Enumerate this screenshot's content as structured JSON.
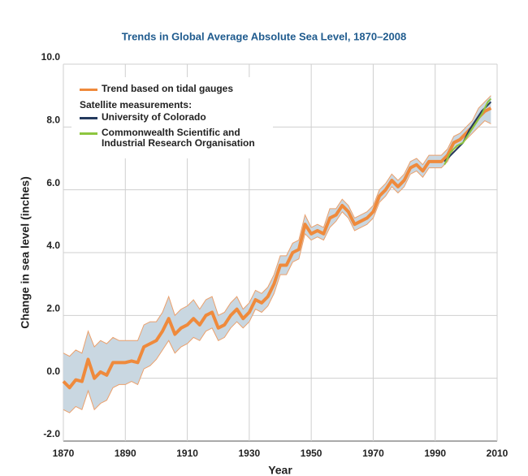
{
  "chart_data": {
    "type": "line",
    "title": "Trends in Global Average Absolute Sea Level, 1870–2008",
    "x_label": "Year",
    "y_label": "Change in sea level (inches)",
    "legend_heading": "Satellite measurements:",
    "xlim": [
      1870,
      2010
    ],
    "xticks": [
      1870,
      1890,
      1910,
      1930,
      1950,
      1970,
      1990,
      2010
    ],
    "ylim": [
      -2,
      10
    ],
    "yticks": [
      {
        "value": -2,
        "label": "-2.0"
      },
      {
        "value": 0,
        "label": "0.0"
      },
      {
        "value": 2,
        "label": "2.0"
      },
      {
        "value": 4,
        "label": "4.0"
      },
      {
        "value": 6,
        "label": "6.0"
      },
      {
        "value": 8,
        "label": "8.0"
      },
      {
        "value": 10,
        "label": "10.0"
      }
    ],
    "grid": true,
    "band_color": "#c9d7e1",
    "band_edge_color": "#eba06c",
    "x": [
      1870,
      1872,
      1874,
      1876,
      1878,
      1880,
      1882,
      1884,
      1886,
      1888,
      1890,
      1892,
      1894,
      1896,
      1898,
      1900,
      1902,
      1904,
      1906,
      1908,
      1910,
      1912,
      1914,
      1916,
      1918,
      1920,
      1922,
      1924,
      1926,
      1928,
      1930,
      1932,
      1934,
      1936,
      1938,
      1940,
      1942,
      1944,
      1946,
      1948,
      1950,
      1952,
      1954,
      1956,
      1958,
      1960,
      1962,
      1964,
      1966,
      1968,
      1970,
      1972,
      1974,
      1976,
      1978,
      1980,
      1982,
      1984,
      1986,
      1988,
      1990,
      1992,
      1994,
      1996,
      1998,
      2000,
      2002,
      2004,
      2006,
      2008
    ],
    "band": {
      "lower": [
        -1.0,
        -1.1,
        -0.9,
        -1.0,
        -0.4,
        -1.0,
        -0.8,
        -0.7,
        -0.3,
        -0.2,
        -0.2,
        -0.1,
        -0.2,
        0.3,
        0.4,
        0.6,
        0.9,
        1.2,
        0.8,
        1.0,
        1.1,
        1.3,
        1.2,
        1.5,
        1.6,
        1.2,
        1.3,
        1.6,
        1.8,
        1.6,
        1.8,
        2.2,
        2.1,
        2.3,
        2.7,
        3.3,
        3.3,
        3.7,
        3.8,
        4.6,
        4.4,
        4.5,
        4.4,
        4.8,
        5.0,
        5.3,
        5.1,
        4.7,
        4.8,
        4.9,
        5.1,
        5.6,
        5.8,
        6.1,
        5.9,
        6.1,
        6.5,
        6.6,
        6.4,
        6.7,
        6.7,
        6.7,
        6.9,
        7.3,
        7.4,
        7.6,
        7.8,
        8.0,
        8.2,
        8.1
      ],
      "upper": [
        0.8,
        0.7,
        0.9,
        0.8,
        1.5,
        1.0,
        1.2,
        1.1,
        1.3,
        1.2,
        1.2,
        1.2,
        1.2,
        1.7,
        1.8,
        1.8,
        2.1,
        2.6,
        2.0,
        2.2,
        2.3,
        2.5,
        2.2,
        2.5,
        2.6,
        2.0,
        2.1,
        2.4,
        2.6,
        2.2,
        2.4,
        2.8,
        2.7,
        2.9,
        3.3,
        3.9,
        3.9,
        4.3,
        4.4,
        5.2,
        4.8,
        4.9,
        4.8,
        5.4,
        5.4,
        5.7,
        5.5,
        5.1,
        5.2,
        5.3,
        5.5,
        6.0,
        6.2,
        6.5,
        6.3,
        6.5,
        6.9,
        7.0,
        6.8,
        7.1,
        7.1,
        7.1,
        7.3,
        7.7,
        7.8,
        8.0,
        8.2,
        8.6,
        8.8,
        9.0
      ]
    },
    "series": [
      {
        "name": "Trend based on tidal gauges",
        "color": "#ef8a3c",
        "values": [
          -0.1,
          -0.3,
          -0.05,
          -0.1,
          0.6,
          0.0,
          0.2,
          0.1,
          0.5,
          0.5,
          0.5,
          0.55,
          0.5,
          1.0,
          1.1,
          1.2,
          1.5,
          1.9,
          1.4,
          1.6,
          1.7,
          1.9,
          1.7,
          2.0,
          2.1,
          1.6,
          1.7,
          2.0,
          2.2,
          1.9,
          2.1,
          2.5,
          2.4,
          2.6,
          3.0,
          3.6,
          3.6,
          4.0,
          4.1,
          4.9,
          4.6,
          4.7,
          4.6,
          5.1,
          5.2,
          5.5,
          5.3,
          4.9,
          5.0,
          5.1,
          5.3,
          5.8,
          6.0,
          6.3,
          6.1,
          6.3,
          6.7,
          6.8,
          6.6,
          6.9,
          6.9,
          6.9,
          7.1,
          7.5,
          7.6,
          7.8,
          8.0,
          8.3,
          8.5,
          8.6
        ]
      },
      {
        "name": "University of Colorado",
        "color": "#243a5e",
        "x": [
          1993,
          1995,
          1997,
          1999,
          2001,
          2003,
          2005,
          2007,
          2008
        ],
        "values": [
          6.9,
          7.1,
          7.3,
          7.5,
          7.9,
          8.2,
          8.5,
          8.7,
          8.8
        ]
      },
      {
        "name": "Commonwealth Scientific and Industrial Research Organisation",
        "color": "#8dc63f",
        "x": [
          1993,
          1995,
          1997,
          1999,
          2001,
          2003,
          2005,
          2007,
          2008
        ],
        "values": [
          6.8,
          7.2,
          7.4,
          7.5,
          7.8,
          8.1,
          8.4,
          8.8,
          8.9
        ]
      }
    ]
  }
}
